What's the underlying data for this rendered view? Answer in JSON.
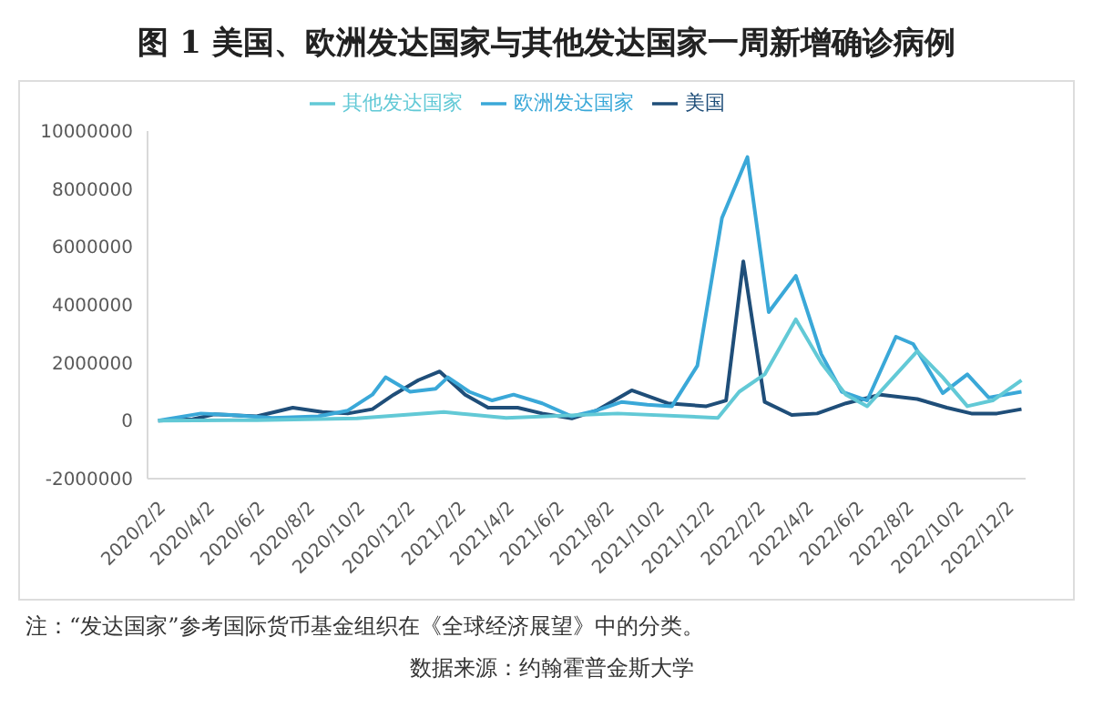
{
  "chart_data": {
    "type": "line",
    "title": "图 1  美国、欧洲发达国家与其他发达国家一周新增确诊病例",
    "series": [
      {
        "name": "美国",
        "color": "#1f4e79",
        "x": [
          "2020-02-02",
          "2020-03-15",
          "2020-04-10",
          "2020-06-01",
          "2020-07-15",
          "2020-08-20",
          "2020-09-20",
          "2020-10-20",
          "2020-11-15",
          "2020-12-15",
          "2021-01-10",
          "2021-02-10",
          "2021-03-10",
          "2021-04-15",
          "2021-05-15",
          "2021-06-20",
          "2021-07-20",
          "2021-09-01",
          "2021-10-15",
          "2021-12-01",
          "2021-12-25",
          "2022-01-15",
          "2022-02-10",
          "2022-03-15",
          "2022-04-15",
          "2022-05-20",
          "2022-07-01",
          "2022-08-15",
          "2022-09-20",
          "2022-10-20",
          "2022-11-20",
          "2022-12-20"
        ],
        "values": [
          0,
          50000,
          220000,
          150000,
          450000,
          300000,
          250000,
          400000,
          900000,
          1400000,
          1700000,
          900000,
          450000,
          450000,
          250000,
          80000,
          350000,
          1050000,
          600000,
          500000,
          700000,
          5500000,
          650000,
          200000,
          250000,
          600000,
          900000,
          750000,
          450000,
          250000,
          250000,
          400000
        ]
      },
      {
        "name": "欧洲发达国家",
        "color": "#3aa8d8",
        "x": [
          "2020-02-02",
          "2020-03-25",
          "2020-05-01",
          "2020-06-20",
          "2020-08-15",
          "2020-09-20",
          "2020-10-20",
          "2020-11-05",
          "2020-12-05",
          "2021-01-05",
          "2021-01-20",
          "2021-02-15",
          "2021-03-15",
          "2021-04-10",
          "2021-05-15",
          "2021-06-20",
          "2021-07-20",
          "2021-08-20",
          "2021-09-20",
          "2021-10-20",
          "2021-11-20",
          "2021-12-20",
          "2022-01-20",
          "2022-02-15",
          "2022-03-20",
          "2022-04-20",
          "2022-05-15",
          "2022-06-15",
          "2022-07-20",
          "2022-08-10",
          "2022-09-15",
          "2022-10-15",
          "2022-11-10",
          "2022-12-20"
        ],
        "values": [
          0,
          250000,
          200000,
          100000,
          150000,
          350000,
          900000,
          1500000,
          1000000,
          1100000,
          1500000,
          1000000,
          700000,
          900000,
          600000,
          150000,
          350000,
          650000,
          550000,
          500000,
          1900000,
          7000000,
          9100000,
          3750000,
          5000000,
          2300000,
          1000000,
          700000,
          2900000,
          2650000,
          950000,
          1600000,
          800000,
          1000000
        ]
      },
      {
        "name": "其他发达国家",
        "color": "#62c9d6",
        "x": [
          "2020-02-02",
          "2020-06-01",
          "2020-10-01",
          "2021-01-15",
          "2021-04-01",
          "2021-08-15",
          "2021-12-15",
          "2022-01-10",
          "2022-02-10",
          "2022-03-20",
          "2022-04-20",
          "2022-05-20",
          "2022-06-15",
          "2022-08-15",
          "2022-09-15",
          "2022-10-15",
          "2022-11-15",
          "2022-12-20"
        ],
        "values": [
          0,
          20000,
          80000,
          300000,
          100000,
          250000,
          100000,
          1000000,
          1600000,
          3500000,
          2000000,
          900000,
          500000,
          2400000,
          1500000,
          500000,
          700000,
          1400000
        ]
      }
    ],
    "xlim": [
      "2020-01-20",
      "2022-12-25"
    ],
    "xticks": [
      {
        "value": "2020-02-02",
        "label": "2020/2/2"
      },
      {
        "value": "2020-04-02",
        "label": "2020/4/2"
      },
      {
        "value": "2020-06-02",
        "label": "2020/6/2"
      },
      {
        "value": "2020-08-02",
        "label": "2020/8/2"
      },
      {
        "value": "2020-10-02",
        "label": "2020/10/2"
      },
      {
        "value": "2020-12-02",
        "label": "2020/12/2"
      },
      {
        "value": "2021-02-02",
        "label": "2021/2/2"
      },
      {
        "value": "2021-04-02",
        "label": "2021/4/2"
      },
      {
        "value": "2021-06-02",
        "label": "2021/6/2"
      },
      {
        "value": "2021-08-02",
        "label": "2021/8/2"
      },
      {
        "value": "2021-10-02",
        "label": "2021/10/2"
      },
      {
        "value": "2021-12-02",
        "label": "2021/12/2"
      },
      {
        "value": "2022-02-02",
        "label": "2022/2/2"
      },
      {
        "value": "2022-04-02",
        "label": "2022/4/2"
      },
      {
        "value": "2022-06-02",
        "label": "2022/6/2"
      },
      {
        "value": "2022-08-02",
        "label": "2022/8/2"
      },
      {
        "value": "2022-10-02",
        "label": "2022/10/2"
      },
      {
        "value": "2022-12-02",
        "label": "2022/12/2"
      }
    ],
    "ylim": [
      -2000000,
      10000000
    ],
    "yticks": [
      -2000000,
      0,
      2000000,
      4000000,
      6000000,
      8000000,
      10000000
    ],
    "legend": "top",
    "grid": false,
    "marker": "none",
    "line_style": "solid",
    "annotations": [
      "注：“发达国家”参考国际货币基金组织在《全球经济展望》中的分类。",
      "数据来源：约翰霍普金斯大学"
    ]
  }
}
